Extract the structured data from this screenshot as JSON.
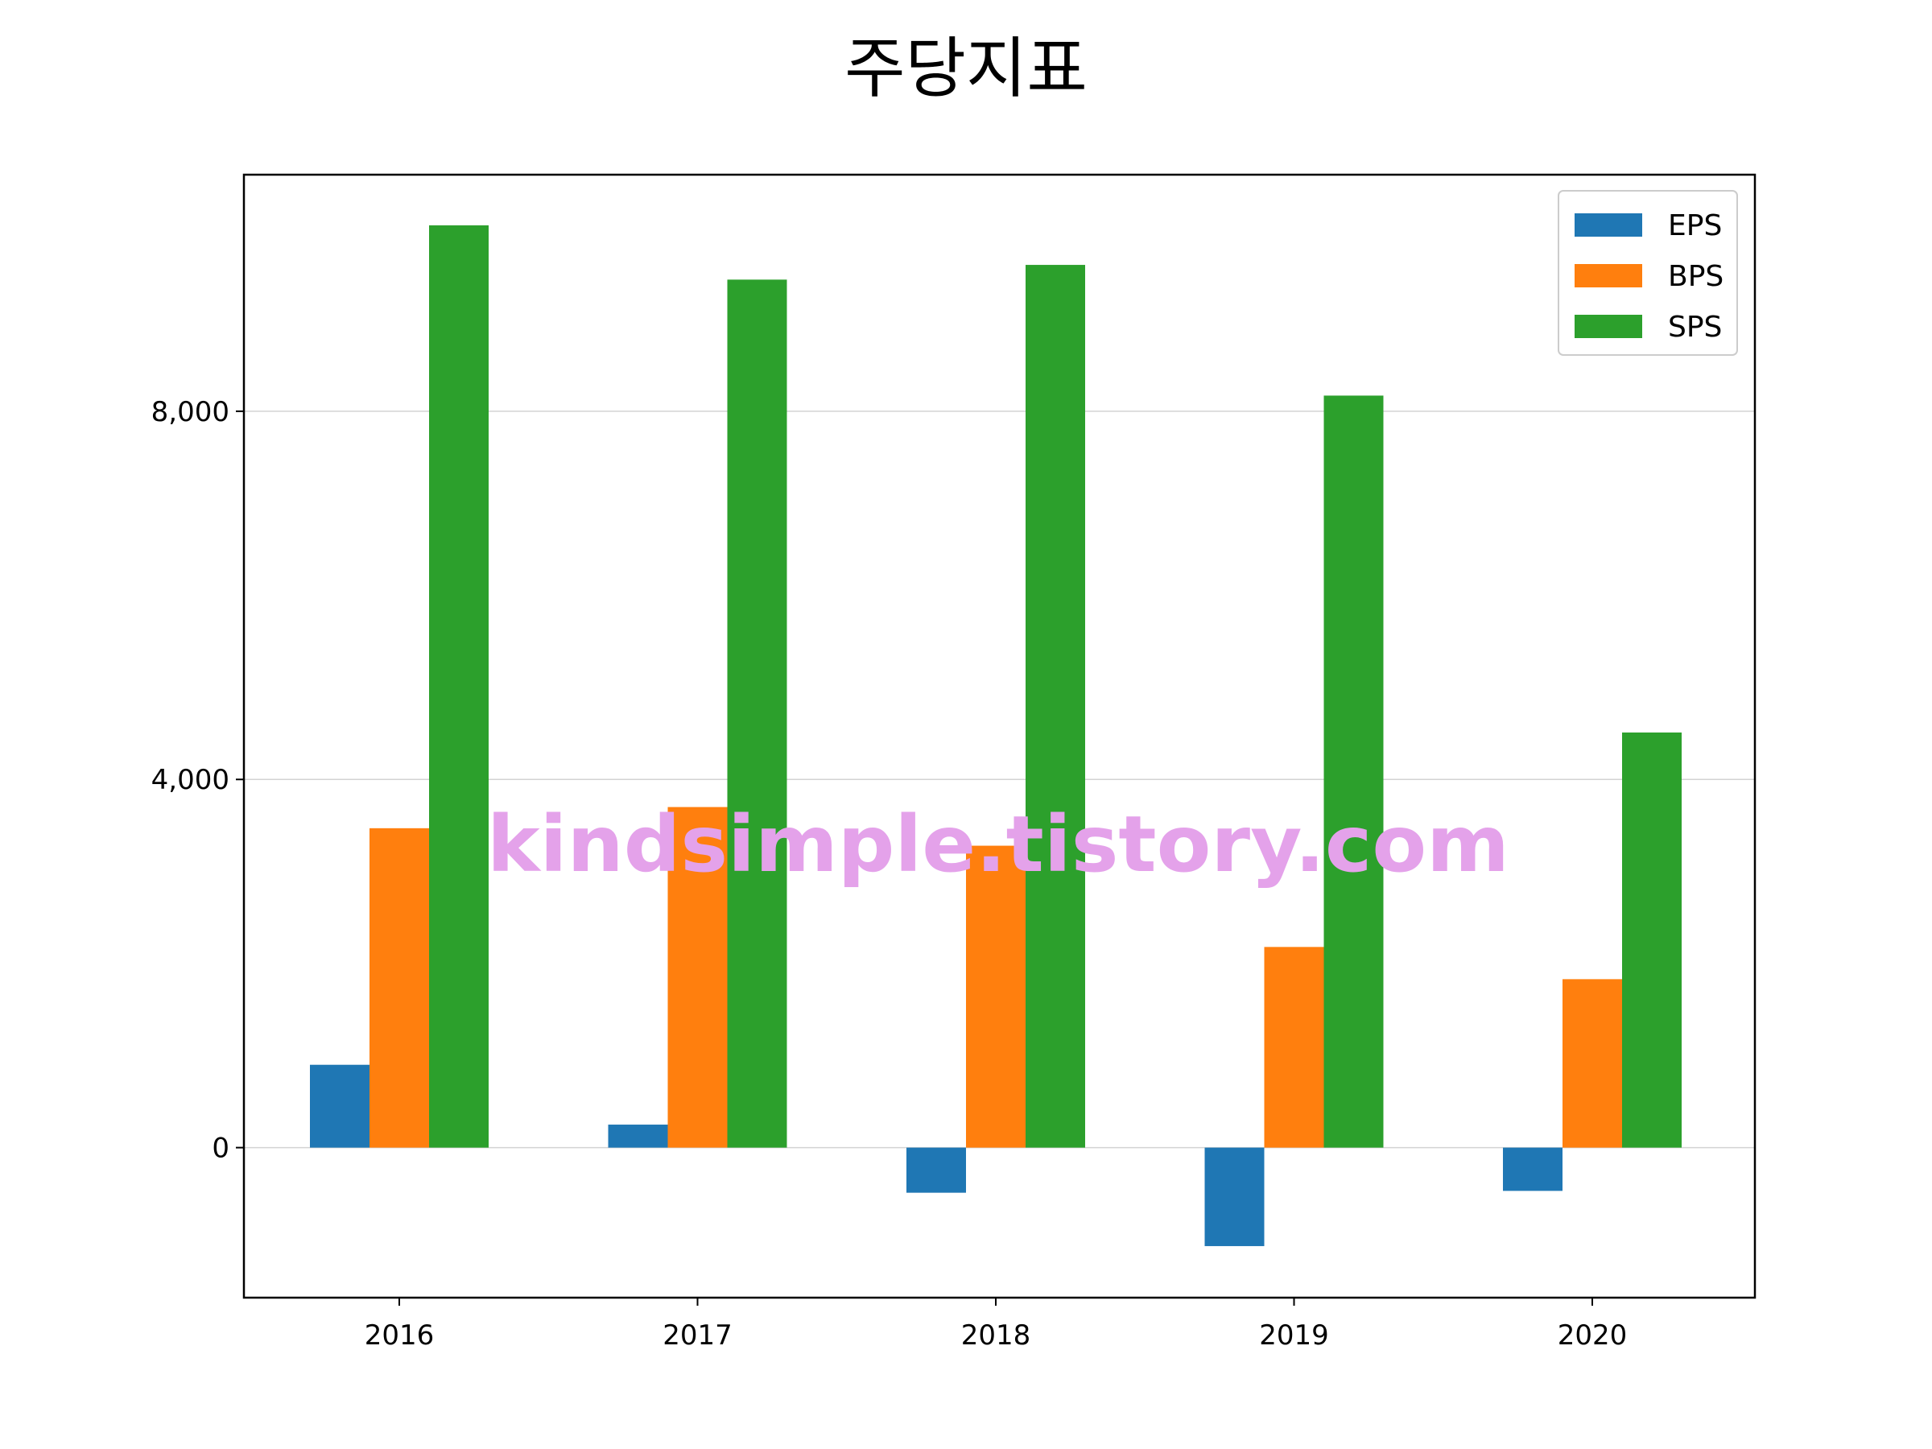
{
  "chart_data": {
    "type": "bar",
    "title": "주당지표",
    "xlabel": "",
    "ylabel": "",
    "categories": [
      "2016",
      "2017",
      "2018",
      "2019",
      "2020"
    ],
    "series": [
      {
        "name": "EPS",
        "color": "#1f77b4",
        "values": [
          900,
          250,
          -490,
          -1070,
          -470
        ]
      },
      {
        "name": "BPS",
        "color": "#ff7f0e",
        "values": [
          3470,
          3700,
          3280,
          2180,
          1830
        ]
      },
      {
        "name": "SPS",
        "color": "#2ca02c",
        "values": [
          10020,
          9430,
          9590,
          8170,
          4510
        ]
      }
    ],
    "ylim": [
      -1630,
      10570
    ],
    "yticks": [
      0,
      4000,
      8000
    ],
    "ytick_labels": [
      "0",
      "4,000",
      "8,000"
    ],
    "grid": "horizontal",
    "legend": {
      "position": "top-right",
      "entries": [
        "EPS",
        "BPS",
        "SPS"
      ]
    }
  },
  "watermark": "kindsimple.tistory.com",
  "colors": {
    "watermark": "#e4a2ea",
    "grid": "#d3d3d3",
    "axis": "#000000"
  }
}
